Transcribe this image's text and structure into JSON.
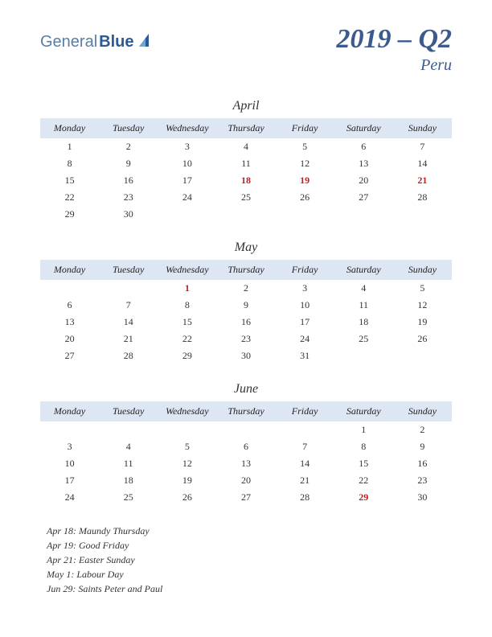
{
  "logo": {
    "part1": "General",
    "part2": "Blue"
  },
  "title": {
    "main": "2019 – Q2",
    "sub": "Peru"
  },
  "styling": {
    "page_bg": "#ffffff",
    "header_row_bg": "#dde7f3",
    "title_color": "#3b5b8f",
    "holiday_color": "#c02020",
    "text_color": "#333333",
    "header_font_size_pt": 12,
    "title_font_size_pt": 34,
    "month_font_size_pt": 16
  },
  "day_headers": [
    "Monday",
    "Tuesday",
    "Wednesday",
    "Thursday",
    "Friday",
    "Saturday",
    "Sunday"
  ],
  "months": [
    {
      "name": "April",
      "weeks": [
        [
          {
            "d": "1"
          },
          {
            "d": "2"
          },
          {
            "d": "3"
          },
          {
            "d": "4"
          },
          {
            "d": "5"
          },
          {
            "d": "6"
          },
          {
            "d": "7"
          }
        ],
        [
          {
            "d": "8"
          },
          {
            "d": "9"
          },
          {
            "d": "10"
          },
          {
            "d": "11"
          },
          {
            "d": "12"
          },
          {
            "d": "13"
          },
          {
            "d": "14"
          }
        ],
        [
          {
            "d": "15"
          },
          {
            "d": "16"
          },
          {
            "d": "17"
          },
          {
            "d": "18",
            "h": true
          },
          {
            "d": "19",
            "h": true
          },
          {
            "d": "20"
          },
          {
            "d": "21",
            "h": true
          }
        ],
        [
          {
            "d": "22"
          },
          {
            "d": "23"
          },
          {
            "d": "24"
          },
          {
            "d": "25"
          },
          {
            "d": "26"
          },
          {
            "d": "27"
          },
          {
            "d": "28"
          }
        ],
        [
          {
            "d": "29"
          },
          {
            "d": "30"
          },
          {
            "d": ""
          },
          {
            "d": ""
          },
          {
            "d": ""
          },
          {
            "d": ""
          },
          {
            "d": ""
          }
        ]
      ]
    },
    {
      "name": "May",
      "weeks": [
        [
          {
            "d": ""
          },
          {
            "d": ""
          },
          {
            "d": "1",
            "h": true
          },
          {
            "d": "2"
          },
          {
            "d": "3"
          },
          {
            "d": "4"
          },
          {
            "d": "5"
          }
        ],
        [
          {
            "d": "6"
          },
          {
            "d": "7"
          },
          {
            "d": "8"
          },
          {
            "d": "9"
          },
          {
            "d": "10"
          },
          {
            "d": "11"
          },
          {
            "d": "12"
          }
        ],
        [
          {
            "d": "13"
          },
          {
            "d": "14"
          },
          {
            "d": "15"
          },
          {
            "d": "16"
          },
          {
            "d": "17"
          },
          {
            "d": "18"
          },
          {
            "d": "19"
          }
        ],
        [
          {
            "d": "20"
          },
          {
            "d": "21"
          },
          {
            "d": "22"
          },
          {
            "d": "23"
          },
          {
            "d": "24"
          },
          {
            "d": "25"
          },
          {
            "d": "26"
          }
        ],
        [
          {
            "d": "27"
          },
          {
            "d": "28"
          },
          {
            "d": "29"
          },
          {
            "d": "30"
          },
          {
            "d": "31"
          },
          {
            "d": ""
          },
          {
            "d": ""
          }
        ]
      ]
    },
    {
      "name": "June",
      "weeks": [
        [
          {
            "d": ""
          },
          {
            "d": ""
          },
          {
            "d": ""
          },
          {
            "d": ""
          },
          {
            "d": ""
          },
          {
            "d": "1"
          },
          {
            "d": "2"
          }
        ],
        [
          {
            "d": "3"
          },
          {
            "d": "4"
          },
          {
            "d": "5"
          },
          {
            "d": "6"
          },
          {
            "d": "7"
          },
          {
            "d": "8"
          },
          {
            "d": "9"
          }
        ],
        [
          {
            "d": "10"
          },
          {
            "d": "11"
          },
          {
            "d": "12"
          },
          {
            "d": "13"
          },
          {
            "d": "14"
          },
          {
            "d": "15"
          },
          {
            "d": "16"
          }
        ],
        [
          {
            "d": "17"
          },
          {
            "d": "18"
          },
          {
            "d": "19"
          },
          {
            "d": "20"
          },
          {
            "d": "21"
          },
          {
            "d": "22"
          },
          {
            "d": "23"
          }
        ],
        [
          {
            "d": "24"
          },
          {
            "d": "25"
          },
          {
            "d": "26"
          },
          {
            "d": "27"
          },
          {
            "d": "28"
          },
          {
            "d": "29",
            "h": true
          },
          {
            "d": "30"
          }
        ]
      ]
    }
  ],
  "holidays": [
    "Apr 18: Maundy Thursday",
    "Apr 19: Good Friday",
    "Apr 21: Easter Sunday",
    "May 1: Labour Day",
    "Jun 29: Saints Peter and Paul"
  ]
}
